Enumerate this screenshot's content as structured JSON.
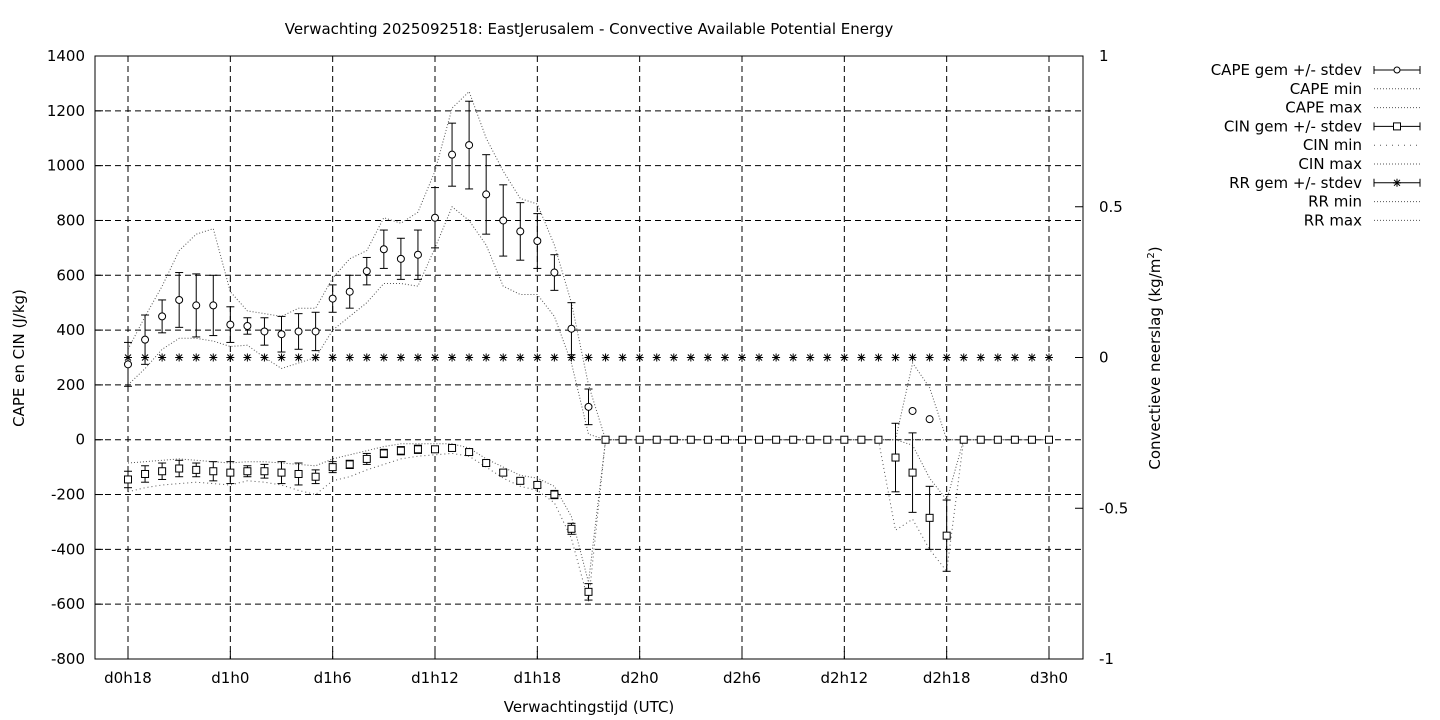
{
  "chart_data": {
    "type": "line",
    "title": "Verwachting 2025092518: EastJerusalem - Convective Available Potential Energy",
    "xlabel": "Verwachtingstijd (UTC)",
    "ylabel": "CAPE en CIN (J/kg)",
    "y2label_main": "Convectieve neerslag (kg/m",
    "y2label_sup": "2",
    "y2label_end": ")",
    "xlim": [
      18,
      72
    ],
    "ylim": [
      -800,
      1400
    ],
    "y2lim": [
      -1,
      1
    ],
    "xticks": [
      {
        "x": 18,
        "label": "d0h18"
      },
      {
        "x": 24,
        "label": "d1h0"
      },
      {
        "x": 30,
        "label": "d1h6"
      },
      {
        "x": 36,
        "label": "d1h12"
      },
      {
        "x": 42,
        "label": "d1h18"
      },
      {
        "x": 48,
        "label": "d2h0"
      },
      {
        "x": 54,
        "label": "d2h6"
      },
      {
        "x": 60,
        "label": "d2h12"
      },
      {
        "x": 66,
        "label": "d2h18"
      },
      {
        "x": 72,
        "label": "d3h0"
      }
    ],
    "yticks": [
      -800,
      -600,
      -400,
      -200,
      0,
      200,
      400,
      600,
      800,
      1000,
      1200,
      1400
    ],
    "y2ticks": [
      {
        "v": -1,
        "label": "-1"
      },
      {
        "v": -0.5,
        "label": "-0.5"
      },
      {
        "v": 0,
        "label": "0"
      },
      {
        "v": 0.5,
        "label": "0.5"
      },
      {
        "v": 1,
        "label": "1"
      }
    ],
    "grid": true,
    "legend_position": "outside-right",
    "legend": [
      {
        "label": "CAPE gem +/- stdev",
        "style": "errorbar-circle"
      },
      {
        "label": "CAPE min",
        "style": "dotted"
      },
      {
        "label": "CAPE max",
        "style": "dotted"
      },
      {
        "label": "CIN gem +/- stdev",
        "style": "errorbar-square"
      },
      {
        "label": "CIN min",
        "style": "dotted-sparse"
      },
      {
        "label": "CIN max",
        "style": "dotted"
      },
      {
        "label": "RR gem +/- stdev",
        "style": "errorbar-star"
      },
      {
        "label": "RR min",
        "style": "dotted"
      },
      {
        "label": "RR max",
        "style": "dotted"
      }
    ],
    "x": [
      18,
      19,
      20,
      21,
      22,
      23,
      24,
      25,
      26,
      27,
      28,
      29,
      30,
      31,
      32,
      33,
      34,
      35,
      36,
      37,
      38,
      39,
      40,
      41,
      42,
      43,
      44,
      45,
      46,
      47,
      48,
      49,
      50,
      51,
      52,
      53,
      54,
      55,
      56,
      57,
      58,
      59,
      60,
      61,
      62,
      63,
      64,
      65,
      66,
      67,
      68,
      69,
      70,
      71,
      72
    ],
    "cape_mean": [
      275,
      365,
      450,
      510,
      490,
      490,
      420,
      415,
      395,
      385,
      395,
      395,
      515,
      540,
      615,
      695,
      660,
      675,
      810,
      1040,
      1075,
      895,
      800,
      760,
      725,
      610,
      405,
      120,
      0,
      0,
      0,
      0,
      0,
      0,
      0,
      0,
      0,
      0,
      0,
      0,
      0,
      0,
      0,
      0,
      0,
      0,
      105,
      75,
      0,
      0,
      0,
      0,
      0,
      0,
      0
    ],
    "cape_sd": [
      80,
      90,
      60,
      100,
      115,
      110,
      65,
      30,
      50,
      65,
      65,
      70,
      50,
      60,
      50,
      70,
      75,
      90,
      110,
      115,
      160,
      145,
      130,
      105,
      100,
      65,
      95,
      65,
      0,
      0,
      0,
      0,
      0,
      0,
      0,
      0,
      0,
      0,
      0,
      0,
      0,
      0,
      0,
      0,
      0,
      0,
      0,
      0,
      0,
      0,
      0,
      0,
      0,
      0,
      0
    ],
    "cape_min": [
      200,
      260,
      330,
      370,
      370,
      360,
      340,
      345,
      300,
      260,
      280,
      300,
      400,
      450,
      500,
      570,
      570,
      560,
      700,
      850,
      800,
      710,
      560,
      530,
      530,
      450,
      280,
      20,
      0,
      0,
      0,
      0,
      0,
      0,
      0,
      0,
      0,
      0,
      0,
      0,
      0,
      0,
      0,
      0,
      0,
      0,
      0,
      0,
      0,
      0,
      0,
      0,
      0,
      0,
      0
    ],
    "cape_max": [
      330,
      450,
      560,
      690,
      750,
      770,
      540,
      470,
      460,
      450,
      480,
      480,
      590,
      660,
      690,
      810,
      790,
      830,
      980,
      1210,
      1270,
      1100,
      980,
      880,
      860,
      710,
      500,
      200,
      0,
      0,
      0,
      0,
      0,
      0,
      0,
      0,
      0,
      0,
      0,
      0,
      0,
      0,
      0,
      0,
      0,
      0,
      280,
      190,
      0,
      0,
      0,
      0,
      0,
      0,
      0
    ],
    "cin_mean": [
      -145,
      -125,
      -115,
      -105,
      -110,
      -115,
      -120,
      -115,
      -115,
      -120,
      -125,
      -135,
      -100,
      -90,
      -70,
      -50,
      -40,
      -35,
      -35,
      -30,
      -45,
      -85,
      -120,
      -150,
      -165,
      -200,
      -325,
      -555,
      0,
      0,
      0,
      0,
      0,
      0,
      0,
      0,
      0,
      0,
      0,
      0,
      0,
      0,
      0,
      0,
      0,
      -65,
      -120,
      -285,
      -350,
      0,
      0,
      0,
      0,
      0,
      0
    ],
    "cin_sd": [
      30,
      30,
      30,
      30,
      25,
      35,
      40,
      20,
      25,
      40,
      40,
      25,
      20,
      15,
      20,
      15,
      15,
      15,
      10,
      10,
      10,
      10,
      10,
      10,
      10,
      15,
      20,
      30,
      0,
      0,
      0,
      0,
      0,
      0,
      0,
      0,
      0,
      0,
      0,
      0,
      0,
      0,
      0,
      0,
      0,
      125,
      145,
      115,
      130,
      0,
      0,
      0,
      0,
      0,
      0
    ],
    "cin_min": [
      -190,
      -175,
      -165,
      -160,
      -155,
      -160,
      -165,
      -150,
      -155,
      -165,
      -185,
      -200,
      -150,
      -135,
      -110,
      -90,
      -70,
      -60,
      -55,
      -50,
      -60,
      -100,
      -140,
      -170,
      -185,
      -230,
      -360,
      -590,
      0,
      0,
      0,
      0,
      0,
      0,
      0,
      0,
      0,
      0,
      0,
      0,
      0,
      0,
      0,
      0,
      0,
      -330,
      -290,
      -400,
      -480,
      0,
      0,
      0,
      0,
      0,
      0
    ],
    "cin_max": [
      -85,
      -80,
      -75,
      -70,
      -75,
      -80,
      -85,
      -80,
      -80,
      -85,
      -90,
      -95,
      -70,
      -55,
      -40,
      -25,
      -15,
      -15,
      -15,
      -15,
      -30,
      -70,
      -100,
      -130,
      -140,
      -170,
      -280,
      -520,
      0,
      0,
      0,
      0,
      0,
      0,
      0,
      0,
      0,
      0,
      0,
      0,
      0,
      0,
      0,
      0,
      0,
      0,
      -20,
      -140,
      -220,
      0,
      0,
      0,
      0,
      0,
      0
    ],
    "rr_x": [
      18,
      19,
      20,
      21,
      22,
      23,
      24,
      25,
      26,
      27,
      28,
      29,
      30,
      31,
      32,
      33,
      34,
      35,
      36,
      37,
      38,
      39,
      40,
      41,
      42,
      43,
      44,
      45,
      46,
      47,
      48,
      49,
      50,
      51,
      52,
      53,
      54,
      55,
      56,
      57,
      58,
      59,
      60,
      61,
      62,
      63,
      64,
      65,
      66,
      67,
      68,
      69,
      70,
      71,
      72
    ],
    "rr_mean": 0
  }
}
